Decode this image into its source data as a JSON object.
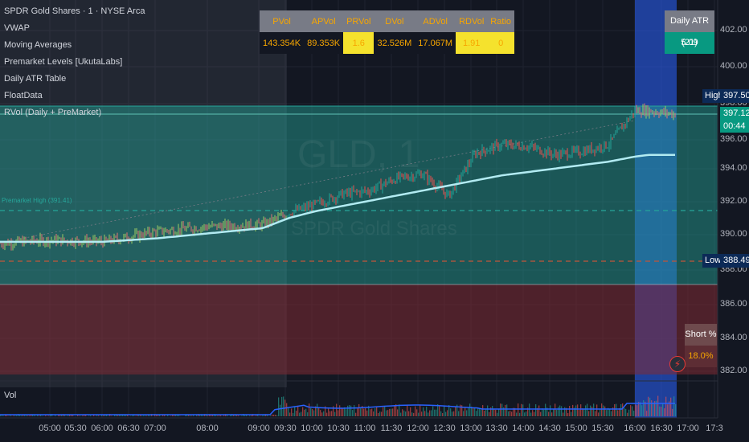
{
  "legend": {
    "title": "SPDR Gold Shares · 1 · NYSE Arca",
    "indicators": [
      "VWAP",
      "Moving Averages",
      "Premarket Levels [UkutaLabs]",
      "Daily ATR Table",
      "FloatData",
      "RVol (Daily + PreMarket)"
    ]
  },
  "rvol_table": {
    "headers": [
      "PVol",
      "APVol",
      "PRVol",
      "DVol",
      "ADVol",
      "RDVol",
      "Ratio"
    ],
    "values": [
      "143.354K",
      "89.353K",
      "1.6",
      "32.526M",
      "17.067M",
      "1.91",
      "0"
    ]
  },
  "atr_table": {
    "header": "Daily ATR (21)",
    "value": "5.09"
  },
  "short_table": {
    "header": "Short %",
    "value": "18.0%"
  },
  "watermark": {
    "symbol": "GLD, 1",
    "name": "SPDR Gold Shares"
  },
  "premarket_high_label": "Premarket High (391.41)",
  "price_axis": {
    "ticks": [
      "402.00",
      "400.00",
      "398.00",
      "396.00",
      "394.00",
      "392.00",
      "390.00",
      "388.00",
      "386.00",
      "384.00",
      "382.00"
    ],
    "high_label": "High",
    "high_value": "397.50",
    "low_label": "Low",
    "low_value": "388.49",
    "last_price": "397.12",
    "countdown": "00:44"
  },
  "time_axis": {
    "ticks": [
      "05:00",
      "05:30",
      "06:00",
      "06:30",
      "07:00",
      "08:00",
      "09:00",
      "09:30",
      "10:00",
      "10:30",
      "11:00",
      "11:30",
      "12:00",
      "12:30",
      "13:00",
      "13:30",
      "14:00",
      "14:30",
      "15:00",
      "15:30",
      "16:00",
      "16:30",
      "17:00",
      "17:3"
    ]
  },
  "volume_pane": {
    "label": "Vol"
  },
  "colors": {
    "background": "#131722",
    "up": "#26a69a",
    "down": "#ef5350",
    "vwap": "#b2ebf2",
    "zone_green": "#26a69a",
    "zone_red": "#7f2a33",
    "session_blue": "#2962ff",
    "accent": "#f7a600"
  },
  "chart_data": {
    "type": "line",
    "series": [],
    "x": [
      "04:00",
      "05:00",
      "06:00",
      "07:00",
      "08:00",
      "09:00",
      "09:30",
      "10:00",
      "10:30",
      "11:00",
      "11:30",
      "12:00",
      "12:30",
      "13:00",
      "13:30",
      "14:00",
      "14:30",
      "15:00",
      "15:30",
      "16:00",
      "16:15",
      "16:45"
    ],
    "price": [
      389.5,
      389.7,
      389.6,
      390.2,
      390.5,
      390.6,
      391.3,
      391.8,
      392.4,
      392.6,
      393.3,
      393.6,
      392.3,
      394.8,
      395.3,
      395.2,
      394.7,
      394.9,
      395.3,
      397.3,
      397.3,
      397.1
    ],
    "vwap": [
      389.6,
      389.6,
      389.6,
      389.8,
      390.1,
      390.4,
      391.0,
      391.4,
      391.7,
      392.0,
      392.3,
      392.6,
      392.9,
      393.2,
      393.5,
      393.7,
      393.9,
      394.1,
      394.3,
      394.6,
      394.7,
      394.7
    ],
    "ylim": [
      381.5,
      403.0
    ],
    "premarket_high": 391.41,
    "premarket_low": 389.05,
    "high": 397.5,
    "low": 388.49
  }
}
